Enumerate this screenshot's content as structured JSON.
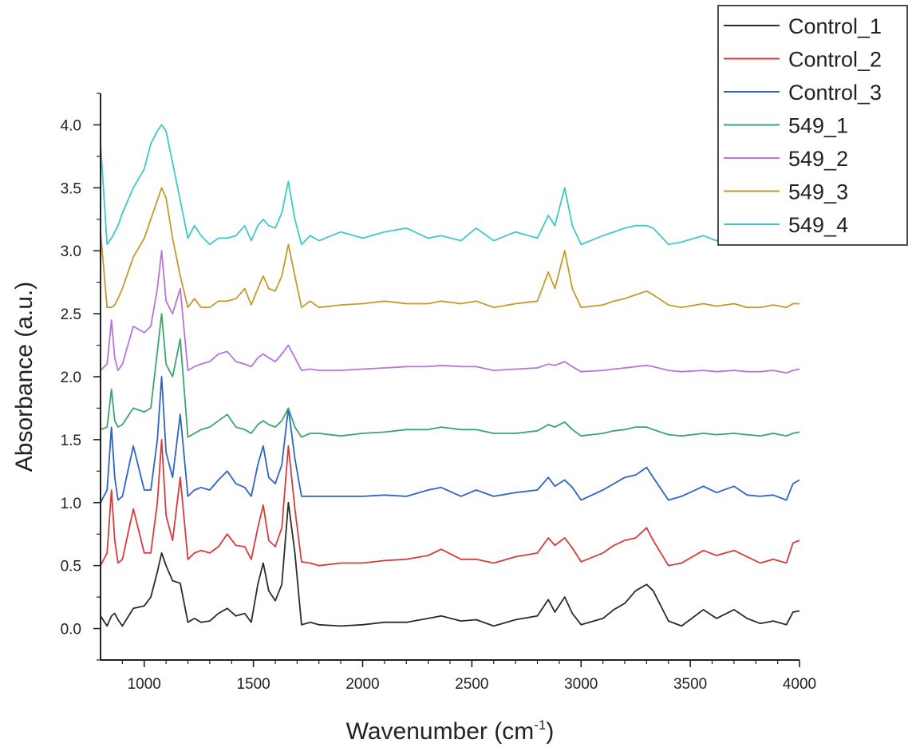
{
  "chart_data": {
    "type": "line",
    "title": "",
    "xlabel": "Wavenumber (cm",
    "xlabel_superscript": "-1",
    "xlabel_suffix": ")",
    "ylabel": "Absorbance (a.u.)",
    "xlim": [
      800,
      4000
    ],
    "ylim": [
      -0.25,
      4.25
    ],
    "x_ticks": [
      1000,
      1500,
      2000,
      2500,
      3000,
      3500,
      4000
    ],
    "x_tick_labels": [
      "1000",
      "1500",
      "2000",
      "2500",
      "3000",
      "3500",
      "4000"
    ],
    "y_ticks": [
      0.0,
      0.5,
      1.0,
      1.5,
      2.0,
      2.5,
      3.0,
      3.5,
      4.0
    ],
    "y_tick_labels": [
      "0.0",
      "0.5",
      "1.0",
      "1.5",
      "2.0",
      "2.5",
      "3.0",
      "3.5",
      "4.0"
    ],
    "grid": false,
    "legend_position": "top-right",
    "x": [
      800,
      830,
      850,
      865,
      880,
      900,
      950,
      1000,
      1030,
      1060,
      1080,
      1100,
      1130,
      1165,
      1200,
      1230,
      1260,
      1300,
      1340,
      1380,
      1420,
      1460,
      1490,
      1520,
      1545,
      1570,
      1600,
      1630,
      1660,
      1690,
      1720,
      1760,
      1800,
      1900,
      2000,
      2100,
      2200,
      2300,
      2360,
      2450,
      2520,
      2600,
      2700,
      2800,
      2850,
      2880,
      2925,
      2960,
      3000,
      3100,
      3150,
      3200,
      3250,
      3300,
      3330,
      3400,
      3460,
      3560,
      3620,
      3700,
      3760,
      3820,
      3880,
      3940,
      3970,
      4000
    ],
    "series": [
      {
        "name": "Control_1",
        "color": "#2b2b2b",
        "values": [
          0.1,
          0.02,
          0.1,
          0.12,
          0.07,
          0.02,
          0.16,
          0.18,
          0.25,
          0.45,
          0.6,
          0.5,
          0.38,
          0.36,
          0.05,
          0.08,
          0.05,
          0.06,
          0.12,
          0.16,
          0.1,
          0.12,
          0.05,
          0.35,
          0.52,
          0.3,
          0.22,
          0.35,
          1.0,
          0.6,
          0.03,
          0.05,
          0.03,
          0.02,
          0.03,
          0.05,
          0.05,
          0.08,
          0.1,
          0.06,
          0.07,
          0.02,
          0.07,
          0.1,
          0.23,
          0.13,
          0.25,
          0.12,
          0.03,
          0.08,
          0.15,
          0.2,
          0.3,
          0.35,
          0.3,
          0.06,
          0.02,
          0.15,
          0.08,
          0.15,
          0.08,
          0.04,
          0.06,
          0.03,
          0.13,
          0.14
        ]
      },
      {
        "name": "Control_2",
        "color": "#d93a3a",
        "values": [
          0.5,
          0.6,
          1.1,
          0.7,
          0.52,
          0.55,
          0.95,
          0.6,
          0.6,
          1.0,
          1.5,
          0.9,
          0.7,
          1.2,
          0.55,
          0.6,
          0.62,
          0.6,
          0.65,
          0.75,
          0.66,
          0.65,
          0.55,
          0.8,
          0.98,
          0.7,
          0.65,
          0.8,
          1.45,
          0.95,
          0.53,
          0.52,
          0.5,
          0.52,
          0.52,
          0.54,
          0.55,
          0.58,
          0.63,
          0.55,
          0.55,
          0.52,
          0.57,
          0.6,
          0.72,
          0.66,
          0.72,
          0.64,
          0.53,
          0.6,
          0.66,
          0.7,
          0.72,
          0.8,
          0.7,
          0.5,
          0.52,
          0.62,
          0.58,
          0.62,
          0.57,
          0.52,
          0.55,
          0.52,
          0.68,
          0.7
        ]
      },
      {
        "name": "Control_3",
        "color": "#2e64c4",
        "values": [
          1.0,
          1.1,
          1.6,
          1.2,
          1.02,
          1.05,
          1.45,
          1.1,
          1.1,
          1.5,
          2.0,
          1.4,
          1.2,
          1.7,
          1.05,
          1.1,
          1.12,
          1.1,
          1.18,
          1.25,
          1.15,
          1.12,
          1.05,
          1.3,
          1.45,
          1.2,
          1.15,
          1.3,
          1.75,
          1.35,
          1.05,
          1.05,
          1.05,
          1.05,
          1.05,
          1.06,
          1.05,
          1.1,
          1.12,
          1.05,
          1.1,
          1.05,
          1.08,
          1.1,
          1.2,
          1.13,
          1.18,
          1.12,
          1.02,
          1.1,
          1.15,
          1.2,
          1.22,
          1.28,
          1.2,
          1.02,
          1.05,
          1.13,
          1.08,
          1.13,
          1.06,
          1.05,
          1.06,
          1.02,
          1.15,
          1.18
        ]
      },
      {
        "name": "549_1",
        "color": "#3aa66a",
        "values": [
          1.58,
          1.6,
          1.9,
          1.65,
          1.6,
          1.62,
          1.75,
          1.72,
          1.75,
          2.2,
          2.5,
          2.1,
          2.0,
          2.3,
          1.52,
          1.55,
          1.58,
          1.6,
          1.65,
          1.7,
          1.6,
          1.58,
          1.55,
          1.62,
          1.65,
          1.62,
          1.6,
          1.65,
          1.75,
          1.6,
          1.52,
          1.55,
          1.55,
          1.53,
          1.55,
          1.56,
          1.58,
          1.58,
          1.6,
          1.58,
          1.58,
          1.55,
          1.55,
          1.57,
          1.62,
          1.6,
          1.64,
          1.58,
          1.53,
          1.55,
          1.57,
          1.58,
          1.6,
          1.6,
          1.58,
          1.54,
          1.53,
          1.55,
          1.54,
          1.55,
          1.54,
          1.53,
          1.55,
          1.53,
          1.55,
          1.56
        ]
      },
      {
        "name": "549_2",
        "color": "#b575dd",
        "values": [
          2.05,
          2.1,
          2.45,
          2.15,
          2.05,
          2.1,
          2.4,
          2.35,
          2.4,
          2.7,
          3.0,
          2.6,
          2.5,
          2.7,
          2.05,
          2.08,
          2.1,
          2.12,
          2.18,
          2.2,
          2.12,
          2.1,
          2.08,
          2.15,
          2.18,
          2.15,
          2.12,
          2.18,
          2.25,
          2.15,
          2.05,
          2.06,
          2.05,
          2.05,
          2.06,
          2.07,
          2.08,
          2.08,
          2.09,
          2.08,
          2.08,
          2.05,
          2.06,
          2.07,
          2.1,
          2.09,
          2.12,
          2.08,
          2.04,
          2.05,
          2.06,
          2.07,
          2.08,
          2.09,
          2.08,
          2.05,
          2.04,
          2.05,
          2.04,
          2.05,
          2.04,
          2.04,
          2.05,
          2.03,
          2.05,
          2.06
        ]
      },
      {
        "name": "549_3",
        "color": "#c49a2c",
        "values": [
          3.15,
          2.55,
          2.55,
          2.57,
          2.62,
          2.7,
          2.95,
          3.1,
          3.25,
          3.4,
          3.5,
          3.42,
          3.1,
          2.8,
          2.55,
          2.62,
          2.55,
          2.55,
          2.6,
          2.6,
          2.62,
          2.7,
          2.57,
          2.7,
          2.8,
          2.7,
          2.68,
          2.8,
          3.05,
          2.8,
          2.55,
          2.6,
          2.55,
          2.57,
          2.58,
          2.6,
          2.58,
          2.58,
          2.6,
          2.58,
          2.6,
          2.55,
          2.58,
          2.6,
          2.83,
          2.7,
          3.0,
          2.7,
          2.55,
          2.57,
          2.6,
          2.62,
          2.65,
          2.68,
          2.65,
          2.57,
          2.55,
          2.58,
          2.56,
          2.58,
          2.55,
          2.55,
          2.57,
          2.55,
          2.58,
          2.58
        ]
      },
      {
        "name": "549_4",
        "color": "#3fc8c8",
        "values": [
          3.85,
          3.05,
          3.1,
          3.15,
          3.2,
          3.3,
          3.5,
          3.65,
          3.85,
          3.95,
          4.0,
          3.95,
          3.7,
          3.4,
          3.1,
          3.2,
          3.12,
          3.05,
          3.1,
          3.1,
          3.12,
          3.2,
          3.08,
          3.2,
          3.25,
          3.2,
          3.18,
          3.3,
          3.55,
          3.25,
          3.05,
          3.12,
          3.08,
          3.15,
          3.1,
          3.15,
          3.18,
          3.1,
          3.12,
          3.08,
          3.18,
          3.08,
          3.15,
          3.1,
          3.28,
          3.2,
          3.5,
          3.2,
          3.05,
          3.12,
          3.15,
          3.18,
          3.2,
          3.2,
          3.18,
          3.05,
          3.07,
          3.12,
          3.08,
          3.1,
          3.08,
          3.08,
          3.1,
          3.07,
          3.1,
          3.12
        ]
      }
    ]
  }
}
